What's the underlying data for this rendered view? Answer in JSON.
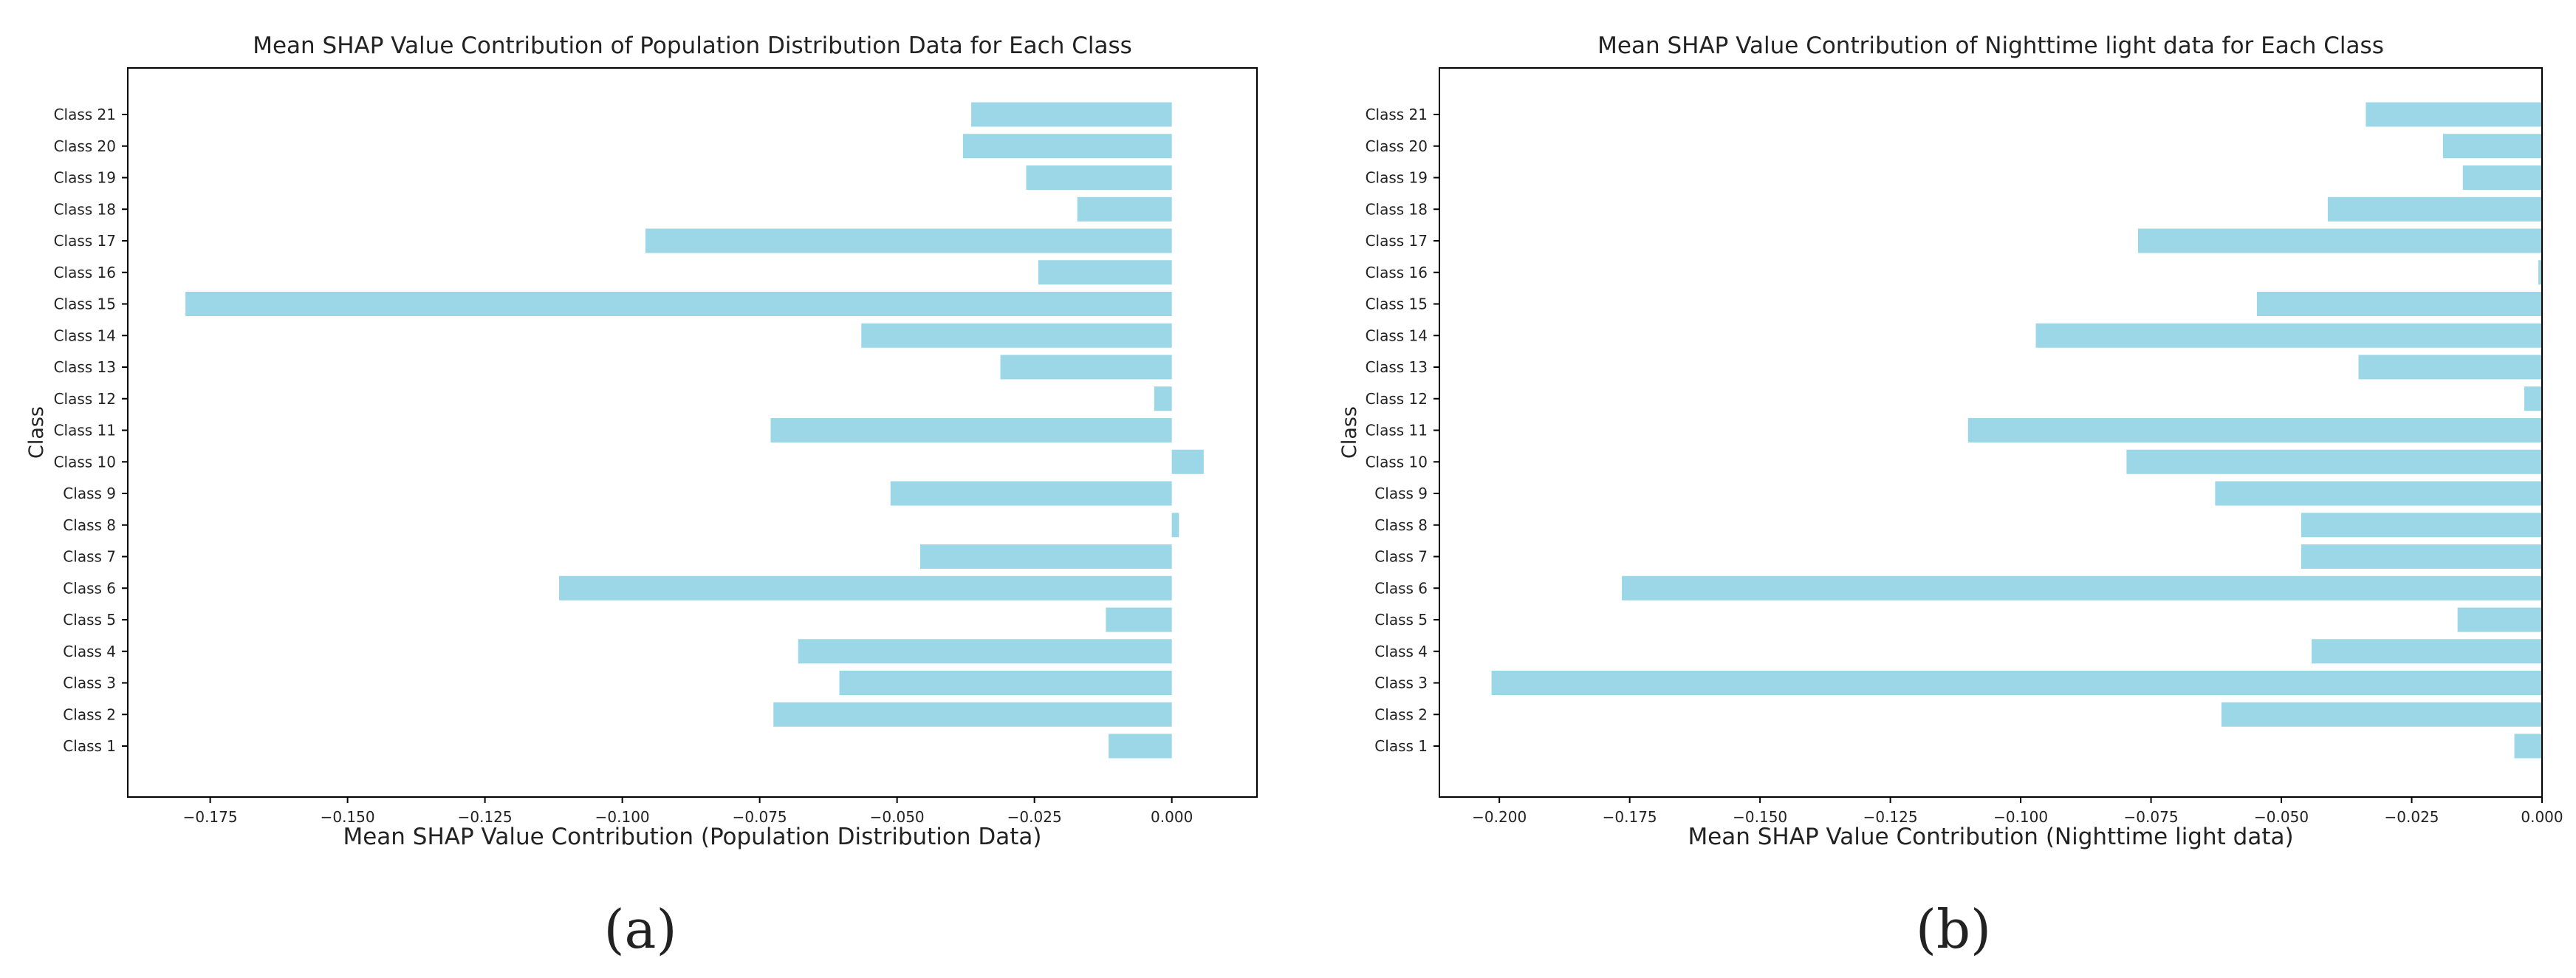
{
  "bar_color": "#9bd7e6",
  "chart_data": [
    {
      "type": "bar",
      "orientation": "horizontal",
      "panel_label": "(a)",
      "title": "Mean SHAP Value Contribution of Population Distribution Data for Each Class",
      "xlabel": "Mean SHAP Value Contribution (Population Distribution Data)",
      "ylabel": "Class",
      "categories": [
        "Class 1",
        "Class 2",
        "Class 3",
        "Class 4",
        "Class 5",
        "Class 6",
        "Class 7",
        "Class 8",
        "Class 9",
        "Class 10",
        "Class 11",
        "Class 12",
        "Class 13",
        "Class 14",
        "Class 15",
        "Class 16",
        "Class 17",
        "Class 18",
        "Class 19",
        "Class 20",
        "Class 21"
      ],
      "values": [
        -0.0115,
        -0.0725,
        -0.0605,
        -0.068,
        -0.012,
        -0.1115,
        -0.0458,
        0.0013,
        -0.0512,
        0.0058,
        -0.073,
        -0.0032,
        -0.0312,
        -0.0565,
        -0.1795,
        -0.0243,
        -0.0958,
        -0.0172,
        -0.0265,
        -0.038,
        -0.0365
      ],
      "xlim": [
        -0.19,
        0.0155
      ],
      "xticks": [
        -0.175,
        -0.15,
        -0.125,
        -0.1,
        -0.075,
        -0.05,
        -0.025,
        0.0
      ],
      "xtick_labels": [
        "−0.175",
        "−0.150",
        "−0.125",
        "−0.100",
        "−0.075",
        "−0.050",
        "−0.025",
        "0.000"
      ]
    },
    {
      "type": "bar",
      "orientation": "horizontal",
      "panel_label": "(b)",
      "title": "Mean SHAP Value Contribution of Nighttime light data for Each Class",
      "xlabel": "Mean SHAP Value Contribution (Nighttime light data)",
      "ylabel": "Class",
      "categories": [
        "Class 1",
        "Class 2",
        "Class 3",
        "Class 4",
        "Class 5",
        "Class 6",
        "Class 7",
        "Class 8",
        "Class 9",
        "Class 10",
        "Class 11",
        "Class 12",
        "Class 13",
        "Class 14",
        "Class 15",
        "Class 16",
        "Class 17",
        "Class 18",
        "Class 19",
        "Class 20",
        "Class 21"
      ],
      "values": [
        -0.0053,
        -0.0615,
        -0.2015,
        -0.0442,
        -0.0162,
        -0.1765,
        -0.0462,
        -0.0462,
        -0.0627,
        -0.0797,
        -0.1101,
        -0.0034,
        -0.0352,
        -0.0971,
        -0.0547,
        -0.0007,
        -0.0775,
        -0.0411,
        -0.0152,
        -0.019,
        -0.0338
      ],
      "xlim": [
        -0.2115,
        0.0
      ],
      "xticks": [
        -0.2,
        -0.175,
        -0.15,
        -0.125,
        -0.1,
        -0.075,
        -0.05,
        -0.025,
        0.0
      ],
      "xtick_labels": [
        "−0.200",
        "−0.175",
        "−0.150",
        "−0.125",
        "−0.100",
        "−0.075",
        "−0.050",
        "−0.025",
        "0.000"
      ]
    }
  ]
}
